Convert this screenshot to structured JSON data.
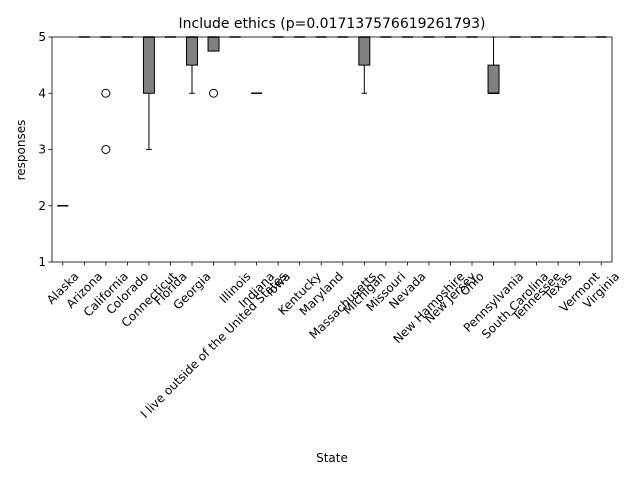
{
  "chart_data": {
    "type": "box",
    "title": "Include ethics (p=0.017137576619261793)",
    "x_label": "State",
    "y_label": "responses",
    "categories": [
      "Alaska",
      "Arizona",
      "California",
      "Colorado",
      "Connecticut",
      "Florida",
      "Georgia",
      "I live outside of the United States",
      "Illinois",
      "Indiana",
      "Iowa",
      "Kentucky",
      "Maryland",
      "Massachusetts",
      "Michigan",
      "Missouri",
      "Nevada",
      "New Hampshire",
      "New Jersey",
      "Ohio",
      "Pennsylvania",
      "South Carolina",
      "Tennessee",
      "Texas",
      "Vermont",
      "Virginia"
    ],
    "boxes": [
      {
        "whislo": 2,
        "q1": 2,
        "med": 2,
        "q3": 2,
        "whishi": 2,
        "fliers": []
      },
      {
        "whislo": 5,
        "q1": 5,
        "med": 5,
        "q3": 5,
        "whishi": 5,
        "fliers": []
      },
      {
        "whislo": 5,
        "q1": 5,
        "med": 5,
        "q3": 5,
        "whishi": 5,
        "fliers": [
          4,
          3
        ]
      },
      {
        "whislo": 5,
        "q1": 5,
        "med": 5,
        "q3": 5,
        "whishi": 5,
        "fliers": []
      },
      {
        "whislo": 3,
        "q1": 4,
        "med": 5,
        "q3": 5,
        "whishi": 5,
        "fliers": []
      },
      {
        "whislo": 5,
        "q1": 5,
        "med": 5,
        "q3": 5,
        "whishi": 5,
        "fliers": []
      },
      {
        "whislo": 4,
        "q1": 4.5,
        "med": 5,
        "q3": 5,
        "whishi": 5,
        "fliers": []
      },
      {
        "whislo": 4.75,
        "q1": 4.75,
        "med": 5,
        "q3": 5,
        "whishi": 5,
        "fliers": [
          4
        ]
      },
      {
        "whislo": 5,
        "q1": 5,
        "med": 5,
        "q3": 5,
        "whishi": 5,
        "fliers": []
      },
      {
        "whislo": 4,
        "q1": 4,
        "med": 4,
        "q3": 4,
        "whishi": 4,
        "fliers": []
      },
      {
        "whislo": 5,
        "q1": 5,
        "med": 5,
        "q3": 5,
        "whishi": 5,
        "fliers": []
      },
      {
        "whislo": 5,
        "q1": 5,
        "med": 5,
        "q3": 5,
        "whishi": 5,
        "fliers": []
      },
      {
        "whislo": 5,
        "q1": 5,
        "med": 5,
        "q3": 5,
        "whishi": 5,
        "fliers": []
      },
      {
        "whislo": 5,
        "q1": 5,
        "med": 5,
        "q3": 5,
        "whishi": 5,
        "fliers": []
      },
      {
        "whislo": 4,
        "q1": 4.5,
        "med": 5,
        "q3": 5,
        "whishi": 5,
        "fliers": []
      },
      {
        "whislo": 5,
        "q1": 5,
        "med": 5,
        "q3": 5,
        "whishi": 5,
        "fliers": []
      },
      {
        "whislo": 5,
        "q1": 5,
        "med": 5,
        "q3": 5,
        "whishi": 5,
        "fliers": []
      },
      {
        "whislo": 5,
        "q1": 5,
        "med": 5,
        "q3": 5,
        "whishi": 5,
        "fliers": []
      },
      {
        "whislo": 5,
        "q1": 5,
        "med": 5,
        "q3": 5,
        "whishi": 5,
        "fliers": []
      },
      {
        "whislo": 5,
        "q1": 5,
        "med": 5,
        "q3": 5,
        "whishi": 5,
        "fliers": []
      },
      {
        "whislo": 4,
        "q1": 4,
        "med": 4,
        "q3": 4.5,
        "whishi": 5,
        "fliers": []
      },
      {
        "whislo": 5,
        "q1": 5,
        "med": 5,
        "q3": 5,
        "whishi": 5,
        "fliers": []
      },
      {
        "whislo": 5,
        "q1": 5,
        "med": 5,
        "q3": 5,
        "whishi": 5,
        "fliers": []
      },
      {
        "whislo": 5,
        "q1": 5,
        "med": 5,
        "q3": 5,
        "whishi": 5,
        "fliers": []
      },
      {
        "whislo": 5,
        "q1": 5,
        "med": 5,
        "q3": 5,
        "whishi": 5,
        "fliers": []
      },
      {
        "whislo": 5,
        "q1": 5,
        "med": 5,
        "q3": 5,
        "whishi": 5,
        "fliers": []
      }
    ],
    "color": "#808080",
    "ylim": [
      1,
      5
    ],
    "yticks": [
      1,
      2,
      3,
      4,
      5
    ]
  }
}
